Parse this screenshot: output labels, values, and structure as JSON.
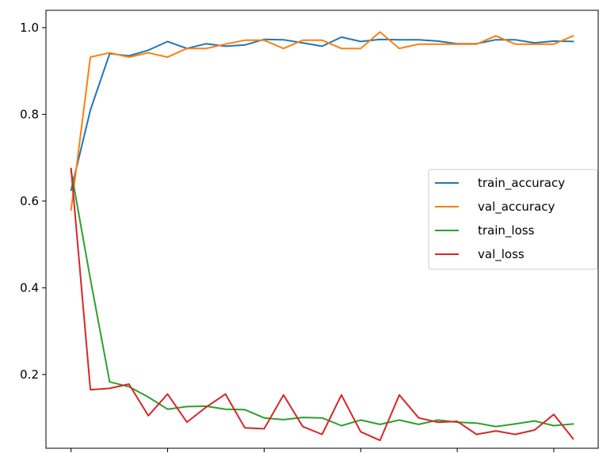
{
  "chart_data": {
    "type": "line",
    "x": [
      0,
      1,
      2,
      3,
      4,
      5,
      6,
      7,
      8,
      9,
      10,
      11,
      12,
      13,
      14,
      15,
      16,
      17,
      18,
      19,
      20,
      21,
      22,
      23,
      24,
      25,
      26
    ],
    "series": [
      {
        "name": "train_accuracy",
        "color": "#1f77b4",
        "values": [
          0.625,
          0.81,
          0.94,
          0.935,
          0.948,
          0.968,
          0.952,
          0.963,
          0.957,
          0.96,
          0.973,
          0.972,
          0.965,
          0.957,
          0.978,
          0.968,
          0.973,
          0.972,
          0.972,
          0.969,
          0.963,
          0.963,
          0.972,
          0.972,
          0.965,
          0.969,
          0.968
        ]
      },
      {
        "name": "val_accuracy",
        "color": "#ff7f0e",
        "values": [
          0.58,
          0.932,
          0.942,
          0.932,
          0.942,
          0.932,
          0.952,
          0.952,
          0.962,
          0.971,
          0.971,
          0.952,
          0.971,
          0.971,
          0.952,
          0.952,
          0.99,
          0.952,
          0.962,
          0.962,
          0.962,
          0.962,
          0.981,
          0.962,
          0.962,
          0.962,
          0.981
        ]
      },
      {
        "name": "train_loss",
        "color": "#2ca02c",
        "values": [
          0.67,
          0.42,
          0.183,
          0.172,
          0.148,
          0.12,
          0.126,
          0.127,
          0.12,
          0.119,
          0.1,
          0.096,
          0.101,
          0.1,
          0.082,
          0.095,
          0.085,
          0.095,
          0.085,
          0.095,
          0.09,
          0.088,
          0.08,
          0.086,
          0.093,
          0.082,
          0.086
        ]
      },
      {
        "name": "val_loss",
        "color": "#d62728",
        "values": [
          0.675,
          0.165,
          0.168,
          0.178,
          0.105,
          0.155,
          0.09,
          0.125,
          0.155,
          0.077,
          0.075,
          0.153,
          0.08,
          0.062,
          0.153,
          0.068,
          0.048,
          0.153,
          0.1,
          0.09,
          0.092,
          0.062,
          0.07,
          0.062,
          0.072,
          0.108,
          0.052
        ]
      }
    ],
    "xticks": [
      0,
      5,
      10,
      15,
      20,
      25
    ],
    "yticks": [
      0.2,
      0.4,
      0.6,
      0.8,
      1.0
    ],
    "ytick_labels": [
      "0.2",
      "0.4",
      "0.6",
      "0.8",
      "1.0"
    ],
    "xlim": [
      -1.3,
      27.3
    ],
    "ylim": [
      0.03,
      1.04
    ],
    "grid": false,
    "legend": {
      "position": "center-right"
    },
    "title": "",
    "xlabel": "",
    "ylabel": ""
  }
}
